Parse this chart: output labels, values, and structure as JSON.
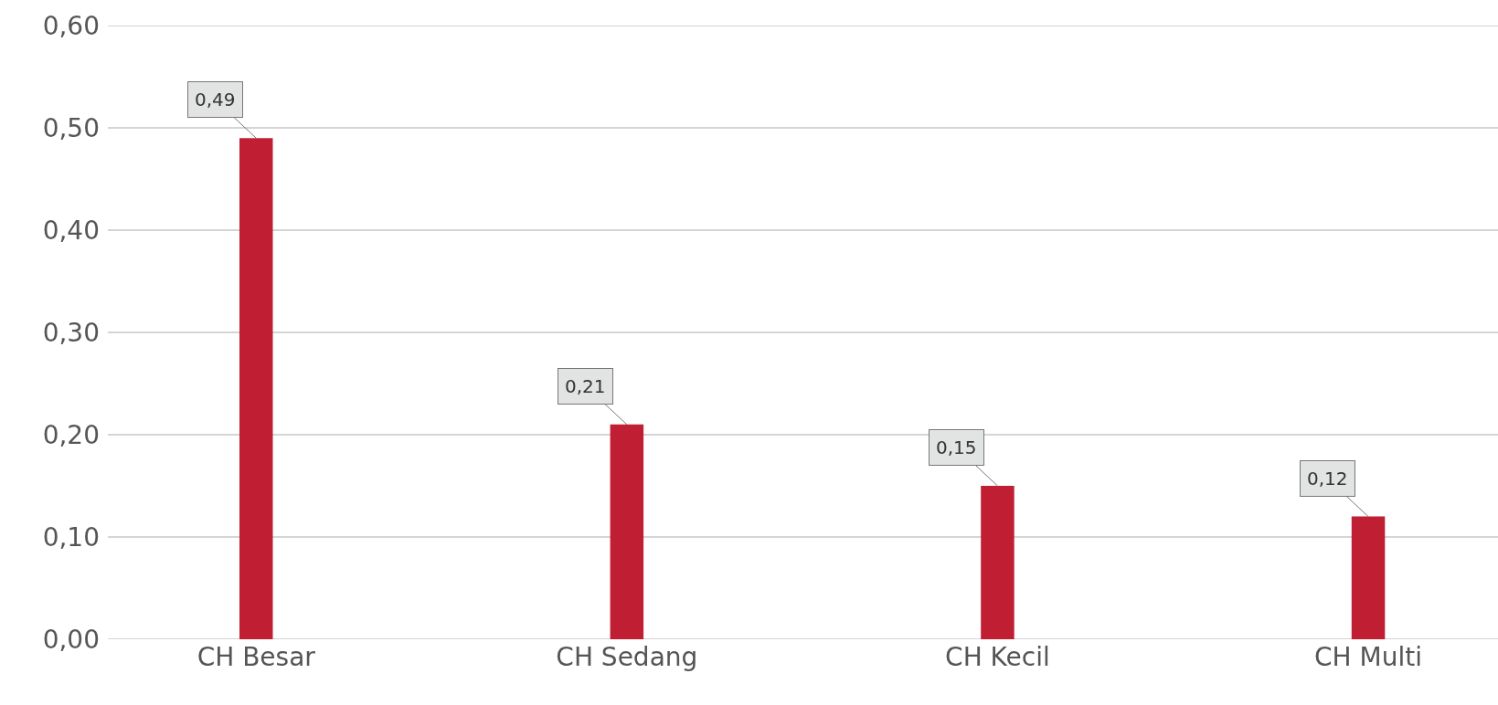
{
  "chart_data": {
    "type": "bar",
    "categories": [
      "CH Besar",
      "CH Sedang",
      "CH Kecil",
      "CH Multi"
    ],
    "values": [
      0.49,
      0.21,
      0.15,
      0.12
    ],
    "value_labels": [
      "0,49",
      "0,21",
      "0,15",
      "0,12"
    ],
    "color": "#c01f33",
    "ylim": [
      0,
      0.6
    ],
    "yticks": [
      {
        "value": 0,
        "label": "0,00"
      },
      {
        "value": 0.1,
        "label": "0,10"
      },
      {
        "value": 0.2,
        "label": "0,20"
      },
      {
        "value": 0.3,
        "label": "0,30"
      },
      {
        "value": 0.4,
        "label": "0,40"
      },
      {
        "value": 0.5,
        "label": "0,50"
      },
      {
        "value": 0.6,
        "label": "0,60"
      }
    ],
    "grid": "y"
  }
}
